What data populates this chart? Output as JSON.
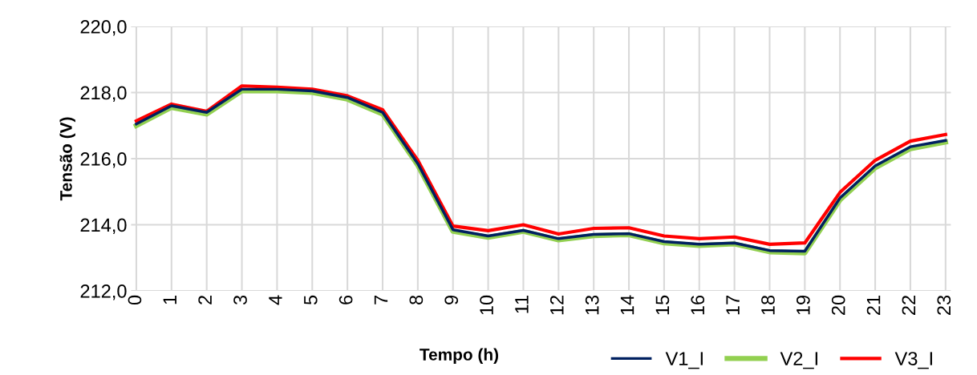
{
  "chart_data": {
    "type": "line",
    "xlabel": "Tempo (h)",
    "ylabel": "Tensão (V)",
    "categories": [
      "0",
      "1",
      "2",
      "3",
      "4",
      "5",
      "6",
      "7",
      "8",
      "9",
      "10",
      "11",
      "12",
      "13",
      "14",
      "15",
      "16",
      "17",
      "18",
      "19",
      "20",
      "21",
      "22",
      "23"
    ],
    "series": [
      {
        "name": "V1_I",
        "color": "#002060",
        "values": [
          217.05,
          217.6,
          217.4,
          218.1,
          218.1,
          218.05,
          217.85,
          217.4,
          215.85,
          213.85,
          213.66,
          213.83,
          213.58,
          213.71,
          213.73,
          213.49,
          213.41,
          213.45,
          213.22,
          213.2,
          214.81,
          215.78,
          216.36,
          216.55
        ]
      },
      {
        "name": "V2_I",
        "color": "#92d050",
        "values": [
          217.0,
          217.55,
          217.35,
          218.05,
          218.05,
          218.0,
          217.8,
          217.35,
          215.8,
          213.8,
          213.62,
          213.8,
          213.54,
          213.67,
          213.7,
          213.45,
          213.37,
          213.42,
          213.18,
          213.15,
          214.75,
          215.72,
          216.3,
          216.5
        ]
      },
      {
        "name": "V3_I",
        "color": "#ff0000",
        "values": [
          217.14,
          217.65,
          217.43,
          218.2,
          218.16,
          218.1,
          217.9,
          217.48,
          215.95,
          213.96,
          213.82,
          214.0,
          213.72,
          213.89,
          213.91,
          213.66,
          213.58,
          213.63,
          213.41,
          213.45,
          214.98,
          215.95,
          216.53,
          216.73
        ]
      }
    ],
    "ylim": [
      212,
      220
    ],
    "yticks": [
      {
        "value": 212,
        "label": "212,0"
      },
      {
        "value": 214,
        "label": "214,0"
      },
      {
        "value": 216,
        "label": "216,0"
      },
      {
        "value": 218,
        "label": "218,0"
      },
      {
        "value": 220,
        "label": "220,0"
      }
    ],
    "grid": true,
    "legend": "bottom right",
    "line_style": "solid",
    "marker": "none"
  }
}
